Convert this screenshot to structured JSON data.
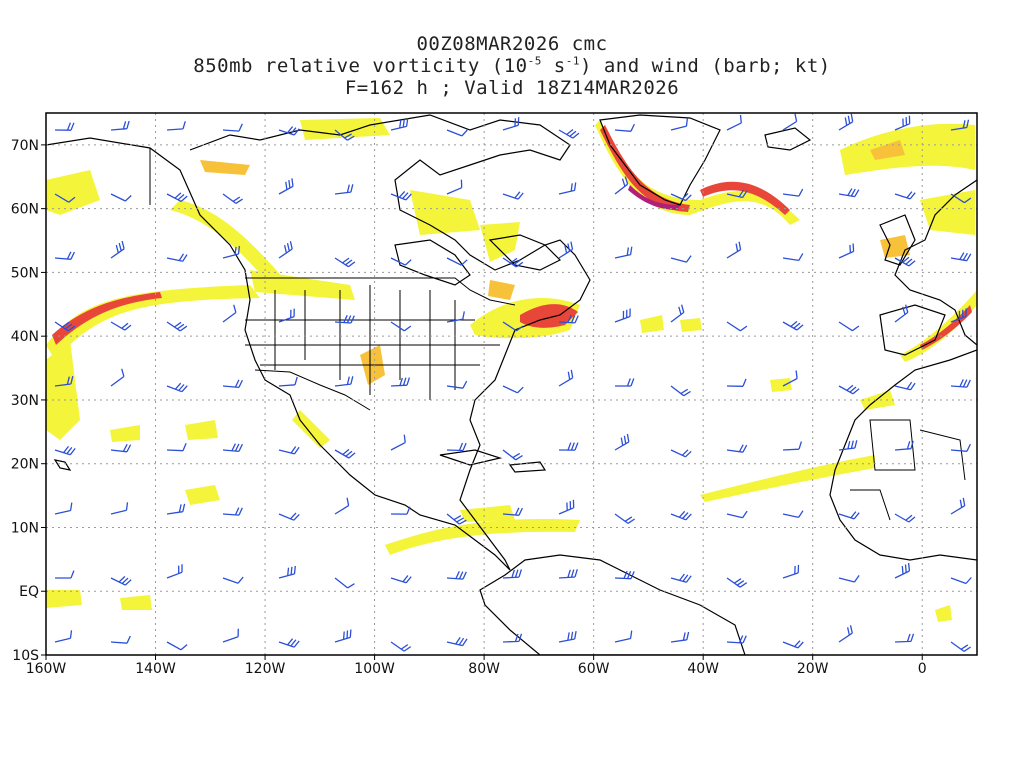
{
  "header": {
    "line1": "00Z08MAR2026 cmc",
    "line2_prefix": "850mb relative vorticity (10",
    "line2_exp1": "-5",
    "line2_mid": " s",
    "line2_exp2": "-1",
    "line2_suffix": ") and wind (barb; kt)",
    "line3": "F=162 h ; Valid 18Z14MAR2026"
  },
  "map": {
    "projection": "latitude-longitude",
    "lon_range": [
      -160,
      10
    ],
    "lat_range": [
      -10,
      75
    ],
    "grid": "dotted",
    "x_ticks": [
      {
        "lon": -160,
        "label": "160W"
      },
      {
        "lon": -140,
        "label": "140W"
      },
      {
        "lon": -120,
        "label": "120W"
      },
      {
        "lon": -100,
        "label": "100W"
      },
      {
        "lon": -80,
        "label": "80W"
      },
      {
        "lon": -60,
        "label": "60W"
      },
      {
        "lon": -40,
        "label": "40W"
      },
      {
        "lon": -20,
        "label": "20W"
      },
      {
        "lon": 0,
        "label": "0"
      }
    ],
    "y_ticks": [
      {
        "lat": 70,
        "label": "70N"
      },
      {
        "lat": 60,
        "label": "60N"
      },
      {
        "lat": 50,
        "label": "50N"
      },
      {
        "lat": 40,
        "label": "40N"
      },
      {
        "lat": 30,
        "label": "30N"
      },
      {
        "lat": 20,
        "label": "20N"
      },
      {
        "lat": 10,
        "label": "10N"
      },
      {
        "lat": 0,
        "label": "EQ"
      },
      {
        "lat": -10,
        "label": "10S"
      }
    ],
    "colors": {
      "coast": "#000000",
      "barb": "#2b4fd8",
      "grid": "#9a9a9a",
      "shade_low": "#f4f43a",
      "shade_mid": "#f7c23a",
      "shade_high": "#e9463a",
      "shade_max": "#b0207a"
    }
  }
}
